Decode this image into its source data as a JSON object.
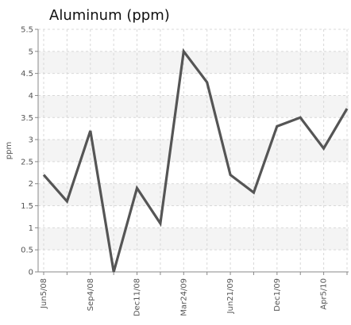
{
  "chart_data": {
    "type": "line",
    "title": "Aluminum (ppm)",
    "xlabel": "",
    "ylabel": "ppm",
    "categories": [
      "Jun5/08",
      "",
      "Sep4/08",
      "",
      "Dec11/08",
      "",
      "Mar24/09",
      "",
      "Jun21/09",
      "",
      "Dec1/09",
      "",
      "Apr5/10",
      ""
    ],
    "series": [
      {
        "values": [
          2.2,
          1.6,
          3.2,
          0.0,
          1.9,
          1.1,
          5.0,
          4.3,
          2.2,
          1.8,
          3.3,
          3.5,
          2.8,
          3.7
        ]
      }
    ],
    "ylim": [
      0,
      5.5
    ],
    "yticks": [
      0,
      0.5,
      1,
      1.5,
      2,
      2.5,
      3,
      3.5,
      4,
      4.5,
      5,
      5.5
    ],
    "ytick_labels": [
      "0",
      "0.5",
      "1",
      "1.5",
      "2",
      "2.5",
      "3",
      "3.5",
      "4",
      "4.5",
      "5",
      "5.5"
    ],
    "grid": true,
    "legend": "none",
    "colors": {
      "line": "#555555",
      "band": "#f4f4f4",
      "grid": "#d8d8d8",
      "axis": "#888888"
    }
  }
}
